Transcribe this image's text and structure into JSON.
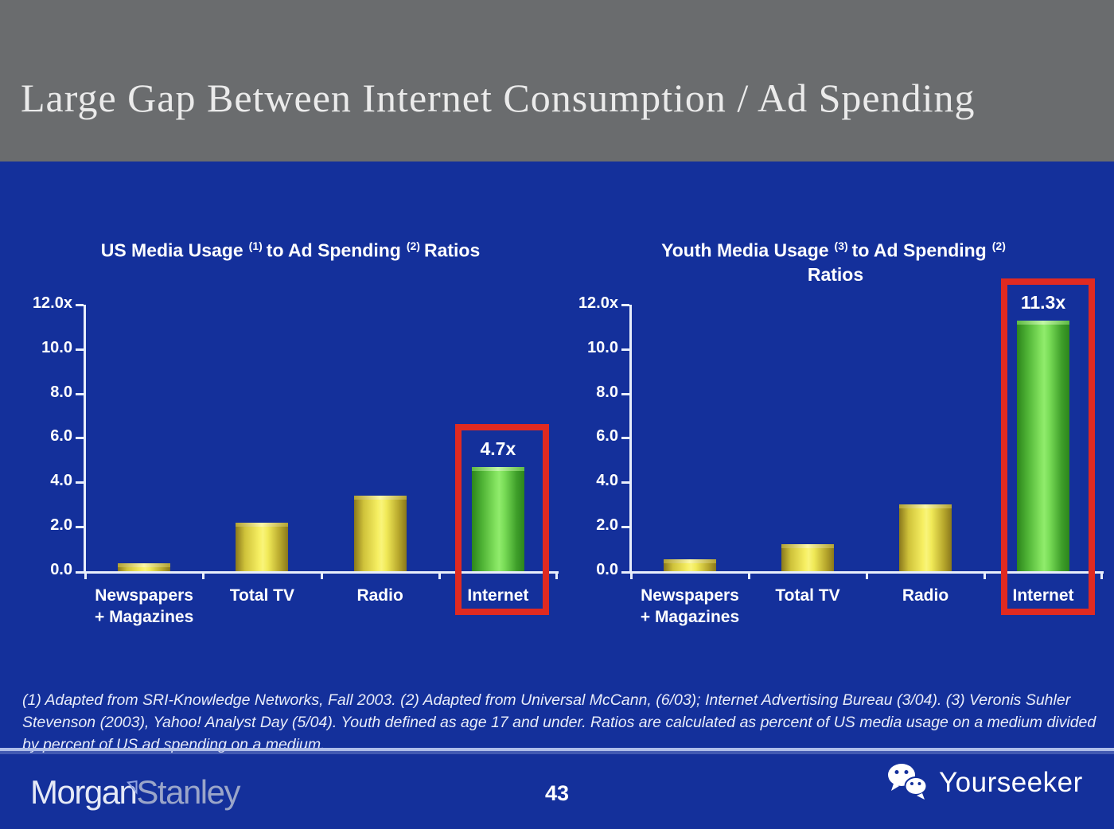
{
  "slide": {
    "header_title": "Large Gap Between Internet Consumption / Ad Spending",
    "page_number": "43",
    "footnote": "(1) Adapted from SRI-Knowledge Networks, Fall 2003.  (2) Adapted from Universal McCann, (6/03); Internet Advertising Bureau (3/04). (3) Veronis Suhler Stevenson (2003), Yahoo! Analyst Day (5/04).  Youth defined as age 17 and under.  Ratios are calculated as percent of US media usage on a medium divided by percent of US ad spending on a medium."
  },
  "footer": {
    "logo_morgan": "Morgan",
    "logo_stanley": "Stanley",
    "brand_name": "Yourseeker"
  },
  "colors": {
    "background_blue": "#14309B",
    "header_gray": "#6A6C6E",
    "highlight_red": "#E02A21",
    "bar_yellow": "#F6EF62",
    "bar_green": "#83E25F",
    "axis_white": "#E8EEFB"
  },
  "chart_data": [
    {
      "type": "bar",
      "title": "US Media Usage (1) to Ad Spending (2) Ratios",
      "title_parts": {
        "t1": "US Media Usage",
        "sup1": "(1)",
        "t2": "to Ad Spending",
        "sup2": "(2)",
        "t3": "Ratios"
      },
      "categories": [
        "Newspapers + Magazines",
        "Total TV",
        "Radio",
        "Internet"
      ],
      "category_lines": [
        [
          "Newspapers",
          "+ Magazines"
        ],
        [
          "Total TV"
        ],
        [
          "Radio"
        ],
        [
          "Internet"
        ]
      ],
      "values": [
        0.35,
        2.2,
        3.4,
        4.7
      ],
      "y_ticks": [
        "12.0x",
        "10.0",
        "8.0",
        "6.0",
        "4.0",
        "2.0",
        "0.0"
      ],
      "ylim": [
        0,
        12
      ],
      "grid": false,
      "legend": false,
      "highlight_index": 3,
      "highlight_label": "4.7x"
    },
    {
      "type": "bar",
      "title": "Youth Media Usage (3) to Ad Spending (2) Ratios",
      "title_parts": {
        "t1": "Youth Media Usage",
        "sup1": "(3)",
        "t2": "to Ad Spending",
        "sup2": "(2)",
        "t3": "Ratios"
      },
      "categories": [
        "Newspapers + Magazines",
        "Total TV",
        "Radio",
        "Internet"
      ],
      "category_lines": [
        [
          "Newspapers",
          "+ Magazines"
        ],
        [
          "Total TV"
        ],
        [
          "Radio"
        ],
        [
          "Internet"
        ]
      ],
      "values": [
        0.55,
        1.2,
        3.0,
        11.3
      ],
      "y_ticks": [
        "12.0x",
        "10.0",
        "8.0",
        "6.0",
        "4.0",
        "2.0",
        "0.0"
      ],
      "ylim": [
        0,
        12
      ],
      "grid": false,
      "legend": false,
      "highlight_index": 3,
      "highlight_label": "11.3x"
    }
  ]
}
